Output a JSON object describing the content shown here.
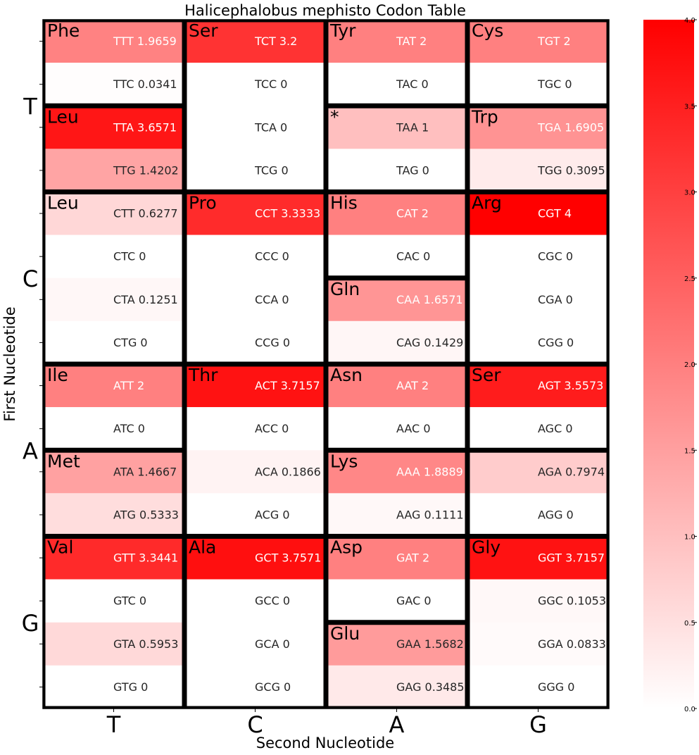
{
  "chart_data": {
    "type": "heatmap",
    "title": "Halicephalobus mephisto Codon Table",
    "xlabel": "Second Nucleotide",
    "ylabel": "First Nucleotide",
    "x_categories": [
      "T",
      "C",
      "A",
      "G"
    ],
    "y_categories": [
      "T",
      "C",
      "A",
      "G"
    ],
    "color_scale": {
      "min": 0.0,
      "max": 4.0,
      "low_color": "#ffffff",
      "high_color": "#ff0000"
    },
    "colorbar_ticks": [
      "0.0",
      "0.5",
      "1.0",
      "1.5",
      "2.0",
      "2.5",
      "3.0",
      "3.5",
      "4.0"
    ],
    "codons": [
      [
        "TTT",
        1.9659
      ],
      [
        "TCT",
        3.2
      ],
      [
        "TAT",
        2.0
      ],
      [
        "TGT",
        2.0
      ],
      [
        "TTC",
        0.0341
      ],
      [
        "TCC",
        0.0
      ],
      [
        "TAC",
        0.0
      ],
      [
        "TGC",
        0.0
      ],
      [
        "TTA",
        3.6571
      ],
      [
        "TCA",
        0.0
      ],
      [
        "TAA",
        1.0
      ],
      [
        "TGA",
        1.6905
      ],
      [
        "TTG",
        1.4202
      ],
      [
        "TCG",
        0.0
      ],
      [
        "TAG",
        0.0
      ],
      [
        "TGG",
        0.3095
      ],
      [
        "CTT",
        0.6277
      ],
      [
        "CCT",
        3.3333
      ],
      [
        "CAT",
        2.0
      ],
      [
        "CGT",
        4.0
      ],
      [
        "CTC",
        0.0
      ],
      [
        "CCC",
        0.0
      ],
      [
        "CAC",
        0.0
      ],
      [
        "CGC",
        0.0
      ],
      [
        "CTA",
        0.1251
      ],
      [
        "CCA",
        0.0
      ],
      [
        "CAA",
        1.6571
      ],
      [
        "CGA",
        0.0
      ],
      [
        "CTG",
        0.0
      ],
      [
        "CCG",
        0.0
      ],
      [
        "CAG",
        0.1429
      ],
      [
        "CGG",
        0.0
      ],
      [
        "ATT",
        2.0
      ],
      [
        "ACT",
        3.7157
      ],
      [
        "AAT",
        2.0
      ],
      [
        "AGT",
        3.5573
      ],
      [
        "ATC",
        0.0
      ],
      [
        "ACC",
        0.0
      ],
      [
        "AAC",
        0.0
      ],
      [
        "AGC",
        0.0
      ],
      [
        "ATA",
        1.4667
      ],
      [
        "ACA",
        0.1866
      ],
      [
        "AAA",
        1.8889
      ],
      [
        "AGA",
        0.7974
      ],
      [
        "ATG",
        0.5333
      ],
      [
        "ACG",
        0.0
      ],
      [
        "AAG",
        0.1111
      ],
      [
        "AGG",
        0.0
      ],
      [
        "GTT",
        3.3441
      ],
      [
        "GCT",
        3.7571
      ],
      [
        "GAT",
        2.0
      ],
      [
        "GGT",
        3.7157
      ],
      [
        "GTC",
        0.0
      ],
      [
        "GCC",
        0.0
      ],
      [
        "GAC",
        0.0
      ],
      [
        "GGC",
        0.1053
      ],
      [
        "GTA",
        0.5953
      ],
      [
        "GCA",
        0.0
      ],
      [
        "GAA",
        1.5682
      ],
      [
        "GGA",
        0.0833
      ],
      [
        "GTG",
        0.0
      ],
      [
        "GCG",
        0.0
      ],
      [
        "GAG",
        0.3485
      ],
      [
        "GGG",
        0.0
      ]
    ],
    "amino_acid_groups": [
      {
        "label": "Phe",
        "col": 0,
        "start": 0,
        "end": 1
      },
      {
        "label": "Leu",
        "col": 0,
        "start": 2,
        "end": 3
      },
      {
        "label": "Leu",
        "col": 0,
        "start": 4,
        "end": 7
      },
      {
        "label": "Ile",
        "col": 0,
        "start": 8,
        "end": 9
      },
      {
        "label": "Met",
        "col": 0,
        "start": 10,
        "end": 11
      },
      {
        "label": "Val",
        "col": 0,
        "start": 12,
        "end": 15
      },
      {
        "label": "Ser",
        "col": 1,
        "start": 0,
        "end": 3
      },
      {
        "label": "Pro",
        "col": 1,
        "start": 4,
        "end": 7
      },
      {
        "label": "Thr",
        "col": 1,
        "start": 8,
        "end": 11
      },
      {
        "label": "Ala",
        "col": 1,
        "start": 12,
        "end": 15
      },
      {
        "label": "Tyr",
        "col": 2,
        "start": 0,
        "end": 1
      },
      {
        "label": "*",
        "col": 2,
        "start": 2,
        "end": 3
      },
      {
        "label": "His",
        "col": 2,
        "start": 4,
        "end": 5
      },
      {
        "label": "Gln",
        "col": 2,
        "start": 6,
        "end": 7
      },
      {
        "label": "Asn",
        "col": 2,
        "start": 8,
        "end": 9
      },
      {
        "label": "Lys",
        "col": 2,
        "start": 10,
        "end": 11
      },
      {
        "label": "Asp",
        "col": 2,
        "start": 12,
        "end": 13
      },
      {
        "label": "Glu",
        "col": 2,
        "start": 14,
        "end": 15
      },
      {
        "label": "Cys",
        "col": 3,
        "start": 0,
        "end": 1
      },
      {
        "label": "Trp",
        "col": 3,
        "start": 2,
        "end": 3
      },
      {
        "label": "Arg",
        "col": 3,
        "start": 4,
        "end": 7
      },
      {
        "label": "Ser",
        "col": 3,
        "start": 8,
        "end": 9
      },
      {
        "label": "",
        "col": 3,
        "start": 10,
        "end": 11
      },
      {
        "label": "Gly",
        "col": 3,
        "start": 12,
        "end": 15
      }
    ]
  }
}
